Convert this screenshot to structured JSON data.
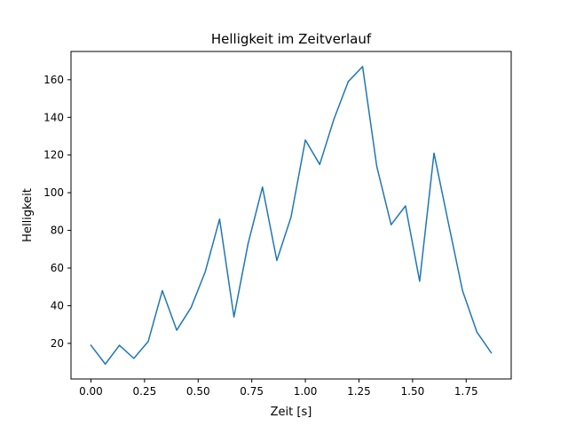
{
  "chart_data": {
    "type": "line",
    "title": "Helligkeit im Zeitverlauf",
    "xlabel": "Zeit [s]",
    "ylabel": "Helligkeit",
    "xlim": [
      -0.093,
      1.96
    ],
    "ylim": [
      1.1,
      175.0
    ],
    "xticks": [
      0.0,
      0.25,
      0.5,
      0.75,
      1.0,
      1.25,
      1.5,
      1.75
    ],
    "xtick_labels": [
      "0.00",
      "0.25",
      "0.50",
      "0.75",
      "1.00",
      "1.25",
      "1.50",
      "1.75"
    ],
    "yticks": [
      20,
      40,
      60,
      80,
      100,
      120,
      140,
      160
    ],
    "ytick_labels": [
      "20",
      "40",
      "60",
      "80",
      "100",
      "120",
      "140",
      "160"
    ],
    "grid": false,
    "series": [
      {
        "color": "#1f77b4",
        "x": [
          0.0,
          0.067,
          0.133,
          0.2,
          0.267,
          0.333,
          0.4,
          0.467,
          0.533,
          0.6,
          0.667,
          0.733,
          0.8,
          0.867,
          0.933,
          1.0,
          1.067,
          1.133,
          1.2,
          1.267,
          1.333,
          1.4,
          1.467,
          1.533,
          1.6,
          1.667,
          1.733,
          1.8,
          1.867
        ],
        "y": [
          19,
          9,
          19,
          12,
          21,
          48,
          27,
          39,
          58,
          86,
          34,
          73,
          103,
          64,
          87,
          128,
          115,
          139,
          159,
          167,
          114,
          83,
          93,
          53,
          121,
          84,
          48,
          26,
          15
        ]
      }
    ]
  }
}
